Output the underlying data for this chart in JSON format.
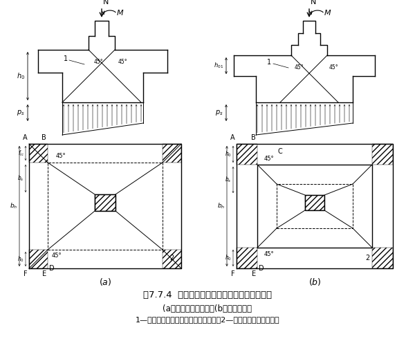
{
  "title": "图7.7.4  计算阶形基础的受冲切承载力截面位置",
  "subtitle_a": "(a）柱与基础交接处；(b）基础变阶处",
  "subtitle_b": "1—冲切破坏锥体最不利一侧的斜截面；2—冲切破坏锥体的底面线",
  "bg_color": "#ffffff",
  "line_color": "#000000"
}
